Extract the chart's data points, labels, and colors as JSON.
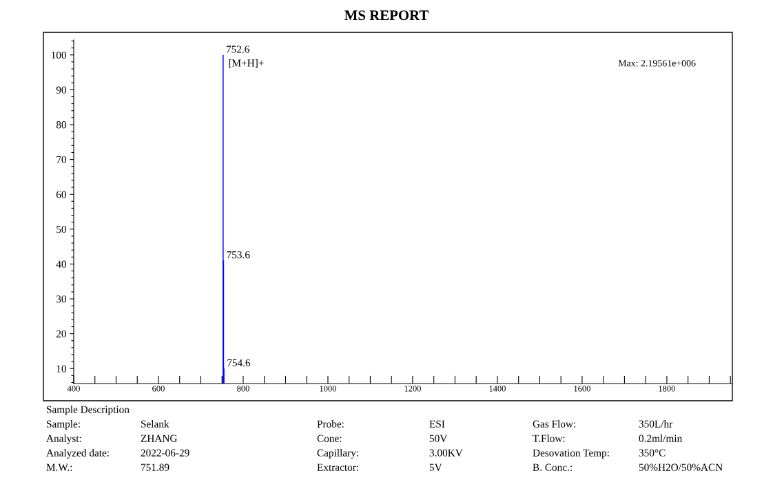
{
  "chart_data": {
    "type": "bar",
    "title": "MS REPORT",
    "x": [
      752.6,
      753.6,
      754.6
    ],
    "values": [
      100,
      41,
      10
    ],
    "color": "#0000ff",
    "xlim": [
      400,
      1953
    ],
    "ylim": [
      5.7,
      104.3
    ],
    "xticks": [
      400,
      {
        "value": 450,
        "label": null
      },
      {
        "value": 500,
        "label": null
      },
      {
        "value": 550,
        "label": null
      },
      600,
      {
        "value": 650,
        "label": null
      },
      {
        "value": 700,
        "label": null
      },
      {
        "value": 750,
        "label": null
      },
      800,
      {
        "value": 850,
        "label": null
      },
      {
        "value": 900,
        "label": null
      },
      {
        "value": 950,
        "label": null
      },
      1000,
      {
        "value": 1050,
        "label": null
      },
      {
        "value": 1100,
        "label": null
      },
      {
        "value": 1150,
        "label": null
      },
      1200,
      {
        "value": 1250,
        "label": null
      },
      {
        "value": 1300,
        "label": null
      },
      {
        "value": 1350,
        "label": null
      },
      1400,
      {
        "value": 1450,
        "label": null
      },
      {
        "value": 1500,
        "label": null
      },
      {
        "value": 1550,
        "label": null
      },
      1600,
      {
        "value": 1650,
        "label": null
      },
      {
        "value": 1700,
        "label": null
      },
      {
        "value": 1750,
        "label": null
      },
      1800,
      {
        "value": 1850,
        "label": null
      },
      {
        "value": 1900,
        "label": null
      },
      {
        "value": 1950,
        "label": null
      }
    ],
    "yticks": [
      {
        "value": 6,
        "label": null
      },
      {
        "value": 8,
        "label": null
      },
      10,
      {
        "value": 12,
        "label": null
      },
      {
        "value": 14,
        "label": null
      },
      {
        "value": 16,
        "label": null
      },
      {
        "value": 18,
        "label": null
      },
      20,
      {
        "value": 22,
        "label": null
      },
      {
        "value": 24,
        "label": null
      },
      {
        "value": 26,
        "label": null
      },
      {
        "value": 28,
        "label": null
      },
      30,
      {
        "value": 32,
        "label": null
      },
      {
        "value": 34,
        "label": null
      },
      {
        "value": 36,
        "label": null
      },
      {
        "value": 38,
        "label": null
      },
      40,
      {
        "value": 42,
        "label": null
      },
      {
        "value": 44,
        "label": null
      },
      {
        "value": 46,
        "label": null
      },
      {
        "value": 48,
        "label": null
      },
      50,
      {
        "value": 52,
        "label": null
      },
      {
        "value": 54,
        "label": null
      },
      {
        "value": 56,
        "label": null
      },
      {
        "value": 58,
        "label": null
      },
      60,
      {
        "value": 62,
        "label": null
      },
      {
        "value": 64,
        "label": null
      },
      {
        "value": 66,
        "label": null
      },
      {
        "value": 68,
        "label": null
      },
      70,
      {
        "value": 72,
        "label": null
      },
      {
        "value": 74,
        "label": null
      },
      {
        "value": 76,
        "label": null
      },
      {
        "value": 78,
        "label": null
      },
      80,
      {
        "value": 82,
        "label": null
      },
      {
        "value": 84,
        "label": null
      },
      {
        "value": 86,
        "label": null
      },
      {
        "value": 88,
        "label": null
      },
      90,
      {
        "value": 92,
        "label": null
      },
      {
        "value": 94,
        "label": null
      },
      {
        "value": 96,
        "label": null
      },
      {
        "value": 98,
        "label": null
      },
      100,
      {
        "value": 102,
        "label": null
      },
      {
        "value": 104,
        "label": null
      }
    ],
    "grid": false,
    "annotations": [
      {
        "text": "752.6",
        "x": 752.6,
        "y": 100
      },
      {
        "text": "753.6",
        "x": 753.6,
        "y": 41
      },
      {
        "text": "754.6",
        "x": 754.6,
        "y": 10
      },
      "[M+H]+",
      "Max: 2.19561e+006",
      "Sample Description",
      "Sample:",
      "Selank",
      "Probe:",
      "ESI",
      "Gas Flow:",
      "350L/hr",
      "Analyst:",
      "ZHANG",
      "Cone:",
      "50V",
      "T.Flow:",
      "0.2ml/min",
      "Analyzed date:",
      "2022-06-29",
      "Capillary:",
      "3.00KV",
      "Desovation Temp:",
      "350°C",
      "M.W.:",
      "751.89",
      "Extractor:",
      "5V",
      "B. Conc.:",
      "50%H2O/50%ACN"
    ]
  }
}
